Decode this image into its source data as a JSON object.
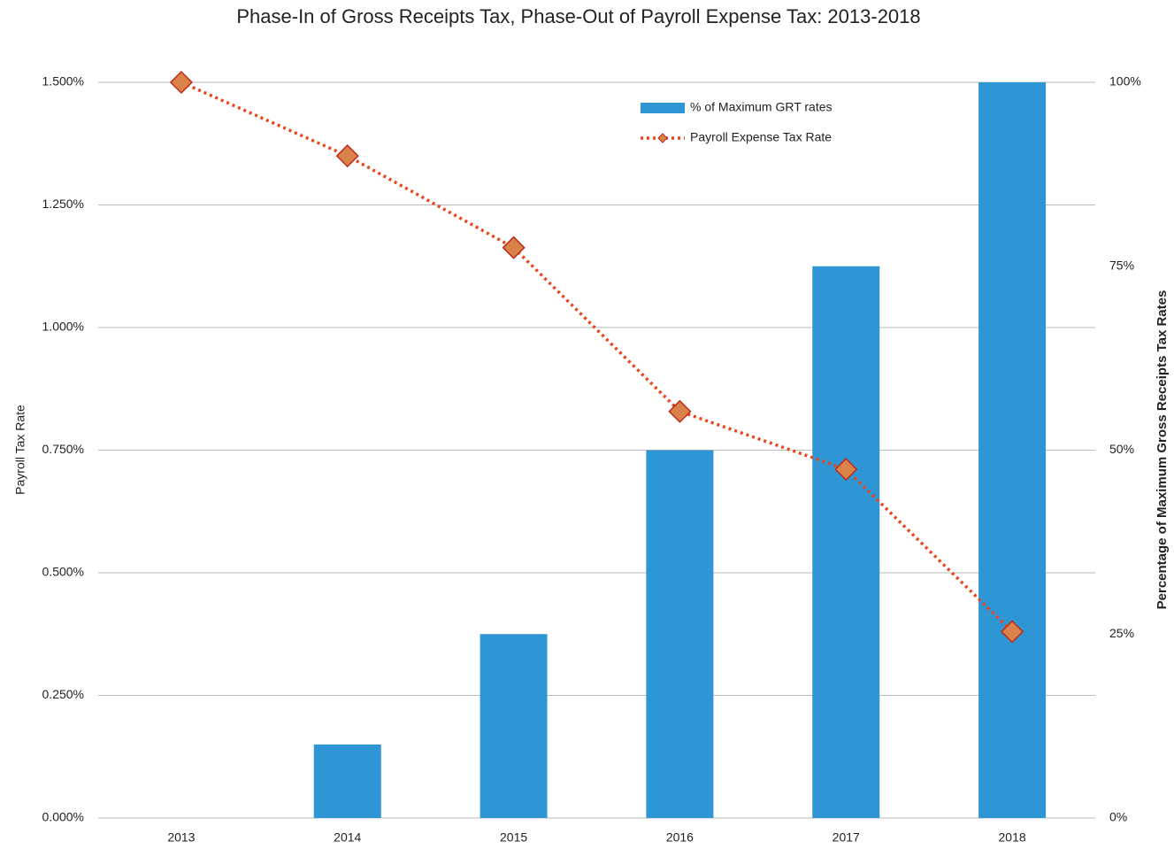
{
  "chart_data": {
    "type": "bar-line",
    "title": "Phase-In of Gross Receipts Tax, Phase-Out of Payroll Expense Tax: 2013-2018",
    "ylabel": "Payroll Tax Rate",
    "y2label": "Percentage of Maximum Gross Receipts Tax Rates",
    "categories": [
      "2013",
      "2014",
      "2015",
      "2016",
      "2017",
      "2018"
    ],
    "series": [
      {
        "name": "% of Maximum GRT rates",
        "type": "bar",
        "axis": "y2",
        "color": "#2f96d6",
        "values": [
          0,
          10,
          25,
          50,
          75,
          100
        ]
      },
      {
        "name": "Payroll Expense Tax Rate",
        "type": "line",
        "color": "#e8461e",
        "marker_color": "#d9824a",
        "values": [
          1.5,
          1.35,
          1.163,
          0.829,
          0.711,
          0.38
        ]
      }
    ],
    "ylim": [
      0,
      1.5
    ],
    "yticks": [
      {
        "value": 0,
        "label": "0.000%"
      },
      {
        "value": 0.25,
        "label": "0.250%"
      },
      {
        "value": 0.5,
        "label": "0.500%"
      },
      {
        "value": 0.75,
        "label": "0.750%"
      },
      {
        "value": 1,
        "label": "1.000%"
      },
      {
        "value": 1.25,
        "label": "1.250%"
      },
      {
        "value": 1.5,
        "label": "1.500%"
      }
    ],
    "y2lim": [
      0,
      100
    ],
    "y2ticks": [
      {
        "value": 0,
        "label": "0%"
      },
      {
        "value": 25,
        "label": "25%"
      },
      {
        "value": 50,
        "label": "50%"
      },
      {
        "value": 75,
        "label": "75%"
      },
      {
        "value": 100,
        "label": "100%"
      }
    ],
    "grid": true,
    "legend": "upper right"
  }
}
